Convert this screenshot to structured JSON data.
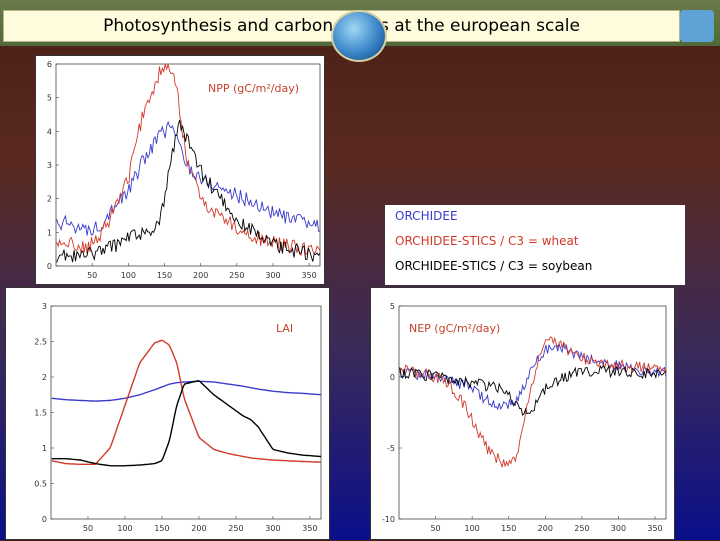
{
  "title": "Photosynthesis and carbon fluxes at the european scale",
  "legend": {
    "entries": [
      {
        "label": "ORCHIDEE",
        "color": "#3a3acd"
      },
      {
        "label": "ORCHIDEE-STICS / C3 = wheat",
        "color": "#d13a2a"
      },
      {
        "label": "ORCHIDEE-STICS / C3 = soybean",
        "color": "#000000"
      }
    ]
  },
  "chart_data": [
    {
      "type": "line",
      "title": "NPP (gC/m²/day)",
      "xlim": [
        0,
        365
      ],
      "ylim": [
        0,
        6
      ],
      "xticks": [
        50,
        100,
        150,
        200,
        250,
        300,
        350
      ],
      "yticks": [
        0,
        1,
        2,
        3,
        4,
        5,
        6
      ],
      "x": [
        1,
        20,
        40,
        60,
        80,
        100,
        120,
        140,
        150,
        160,
        170,
        180,
        200,
        220,
        240,
        260,
        280,
        300,
        320,
        340,
        365
      ],
      "series": [
        {
          "name": "ORCHIDEE",
          "color": "#3a3acd",
          "values": [
            1.2,
            1.3,
            1.0,
            1.2,
            1.8,
            2.2,
            3.1,
            3.8,
            4.0,
            4.2,
            3.6,
            3.0,
            2.6,
            2.4,
            2.2,
            2.0,
            1.8,
            1.6,
            1.4,
            1.3,
            1.2
          ]
        },
        {
          "name": "ORCHIDEE-STICS / C3 = wheat",
          "color": "#d13a2a",
          "values": [
            0.6,
            0.7,
            0.5,
            0.8,
            1.7,
            2.6,
            4.5,
            5.6,
            6.0,
            5.9,
            4.8,
            3.2,
            2.0,
            1.6,
            1.3,
            1.0,
            0.8,
            0.7,
            0.6,
            0.5,
            0.5
          ]
        },
        {
          "name": "ORCHIDEE-STICS / C3 = soybean",
          "color": "#000000",
          "values": [
            0.3,
            0.3,
            0.3,
            0.4,
            0.6,
            0.8,
            1.0,
            1.2,
            2.0,
            3.2,
            4.2,
            3.8,
            2.8,
            2.2,
            1.6,
            1.2,
            0.9,
            0.6,
            0.5,
            0.4,
            0.3
          ]
        }
      ]
    },
    {
      "type": "line",
      "title": "LAI",
      "xlim": [
        0,
        365
      ],
      "ylim": [
        0,
        3
      ],
      "xticks": [
        50,
        100,
        150,
        200,
        250,
        300,
        350
      ],
      "yticks": [
        0,
        0.5,
        1,
        1.5,
        2,
        2.5,
        3
      ],
      "x": [
        1,
        20,
        40,
        60,
        80,
        100,
        120,
        140,
        150,
        160,
        170,
        180,
        200,
        220,
        240,
        260,
        270,
        280,
        300,
        320,
        340,
        365
      ],
      "series": [
        {
          "name": "ORCHIDEE",
          "color": "#3a3acd",
          "values": [
            1.7,
            1.68,
            1.67,
            1.66,
            1.67,
            1.7,
            1.75,
            1.82,
            1.86,
            1.9,
            1.92,
            1.93,
            1.94,
            1.93,
            1.9,
            1.87,
            1.85,
            1.83,
            1.8,
            1.78,
            1.77,
            1.75
          ]
        },
        {
          "name": "ORCHIDEE-STICS / C3 = wheat",
          "color": "#d13a2a",
          "values": [
            0.82,
            0.78,
            0.77,
            0.77,
            1.0,
            1.6,
            2.2,
            2.48,
            2.52,
            2.45,
            2.2,
            1.7,
            1.15,
            0.98,
            0.92,
            0.88,
            0.86,
            0.85,
            0.83,
            0.82,
            0.81,
            0.8
          ]
        },
        {
          "name": "ORCHIDEE-STICS / C3 = soybean",
          "color": "#000000",
          "values": [
            0.85,
            0.85,
            0.83,
            0.78,
            0.75,
            0.75,
            0.76,
            0.78,
            0.82,
            1.1,
            1.6,
            1.9,
            1.95,
            1.75,
            1.6,
            1.45,
            1.4,
            1.3,
            0.98,
            0.93,
            0.9,
            0.88
          ]
        }
      ]
    },
    {
      "type": "line",
      "title": "NEP (gC/m²/day)",
      "xlim": [
        0,
        365
      ],
      "ylim": [
        -10,
        5
      ],
      "xticks": [
        50,
        100,
        150,
        200,
        250,
        300,
        350
      ],
      "yticks": [
        -10,
        -5,
        0,
        5
      ],
      "x": [
        1,
        20,
        40,
        60,
        80,
        100,
        120,
        140,
        150,
        160,
        170,
        180,
        200,
        220,
        240,
        260,
        280,
        300,
        320,
        340,
        365
      ],
      "series": [
        {
          "name": "ORCHIDEE",
          "color": "#3a3acd",
          "values": [
            0.4,
            0.2,
            0.1,
            -0.1,
            -0.4,
            -0.8,
            -1.6,
            -2.0,
            -1.9,
            -1.6,
            -0.8,
            0.4,
            2.0,
            2.2,
            1.6,
            1.3,
            1.0,
            0.8,
            0.6,
            0.5,
            0.4
          ]
        },
        {
          "name": "ORCHIDEE-STICS / C3 = wheat",
          "color": "#d13a2a",
          "values": [
            0.6,
            0.3,
            0.2,
            -0.2,
            -1.2,
            -3.0,
            -5.0,
            -6.0,
            -6.2,
            -5.6,
            -3.6,
            -0.9,
            2.8,
            2.4,
            1.6,
            1.2,
            1.0,
            0.8,
            0.7,
            0.6,
            0.6
          ]
        },
        {
          "name": "ORCHIDEE-STICS / C3 = soybean",
          "color": "#000000",
          "values": [
            0.3,
            0.2,
            0.1,
            0.0,
            -0.2,
            -0.4,
            -0.6,
            -0.9,
            -1.2,
            -1.8,
            -2.6,
            -2.4,
            -0.8,
            -0.2,
            0.3,
            0.4,
            0.4,
            0.3,
            0.3,
            0.3,
            0.3
          ]
        }
      ]
    }
  ]
}
